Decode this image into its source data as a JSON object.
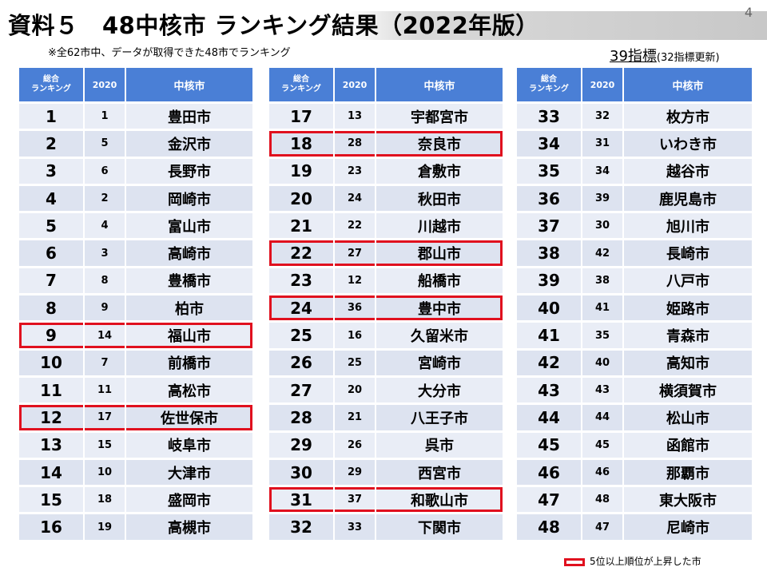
{
  "title": "資料５　48中核市 ランキング結果（2022年版）",
  "page_number": "4",
  "note": "※全62市中、データが取得できた48市でランキング",
  "indicators": {
    "main": "39指標",
    "sub": "(32指標更新)"
  },
  "headers": {
    "rank_line1": "総合",
    "rank_line2": "ランキング",
    "year": "2020",
    "city": "中核市"
  },
  "tables": [
    {
      "rows": [
        {
          "rank": "1",
          "prev": "1",
          "city": "豊田市",
          "up": false
        },
        {
          "rank": "2",
          "prev": "5",
          "city": "金沢市",
          "up": false
        },
        {
          "rank": "3",
          "prev": "6",
          "city": "長野市",
          "up": false
        },
        {
          "rank": "4",
          "prev": "2",
          "city": "岡崎市",
          "up": false
        },
        {
          "rank": "5",
          "prev": "4",
          "city": "富山市",
          "up": false
        },
        {
          "rank": "6",
          "prev": "3",
          "city": "高崎市",
          "up": false
        },
        {
          "rank": "7",
          "prev": "8",
          "city": "豊橋市",
          "up": false
        },
        {
          "rank": "8",
          "prev": "9",
          "city": "柏市",
          "up": false
        },
        {
          "rank": "9",
          "prev": "14",
          "city": "福山市",
          "up": true
        },
        {
          "rank": "10",
          "prev": "7",
          "city": "前橋市",
          "up": false
        },
        {
          "rank": "11",
          "prev": "11",
          "city": "高松市",
          "up": false
        },
        {
          "rank": "12",
          "prev": "17",
          "city": "佐世保市",
          "up": true
        },
        {
          "rank": "13",
          "prev": "15",
          "city": "岐阜市",
          "up": false
        },
        {
          "rank": "14",
          "prev": "10",
          "city": "大津市",
          "up": false
        },
        {
          "rank": "15",
          "prev": "18",
          "city": "盛岡市",
          "up": false
        },
        {
          "rank": "16",
          "prev": "19",
          "city": "高槻市",
          "up": false
        }
      ]
    },
    {
      "rows": [
        {
          "rank": "17",
          "prev": "13",
          "city": "宇都宮市",
          "up": false
        },
        {
          "rank": "18",
          "prev": "28",
          "city": "奈良市",
          "up": true
        },
        {
          "rank": "19",
          "prev": "23",
          "city": "倉敷市",
          "up": false
        },
        {
          "rank": "20",
          "prev": "24",
          "city": "秋田市",
          "up": false
        },
        {
          "rank": "21",
          "prev": "22",
          "city": "川越市",
          "up": false
        },
        {
          "rank": "22",
          "prev": "27",
          "city": "郡山市",
          "up": true
        },
        {
          "rank": "23",
          "prev": "12",
          "city": "船橋市",
          "up": false
        },
        {
          "rank": "24",
          "prev": "36",
          "city": "豊中市",
          "up": true
        },
        {
          "rank": "25",
          "prev": "16",
          "city": "久留米市",
          "up": false
        },
        {
          "rank": "26",
          "prev": "25",
          "city": "宮崎市",
          "up": false
        },
        {
          "rank": "27",
          "prev": "20",
          "city": "大分市",
          "up": false
        },
        {
          "rank": "28",
          "prev": "21",
          "city": "八王子市",
          "up": false
        },
        {
          "rank": "29",
          "prev": "26",
          "city": "呉市",
          "up": false
        },
        {
          "rank": "30",
          "prev": "29",
          "city": "西宮市",
          "up": false
        },
        {
          "rank": "31",
          "prev": "37",
          "city": "和歌山市",
          "up": true
        },
        {
          "rank": "32",
          "prev": "33",
          "city": "下関市",
          "up": false
        }
      ]
    },
    {
      "rows": [
        {
          "rank": "33",
          "prev": "32",
          "city": "枚方市",
          "up": false
        },
        {
          "rank": "34",
          "prev": "31",
          "city": "いわき市",
          "up": false
        },
        {
          "rank": "35",
          "prev": "34",
          "city": "越谷市",
          "up": false
        },
        {
          "rank": "36",
          "prev": "39",
          "city": "鹿児島市",
          "up": false
        },
        {
          "rank": "37",
          "prev": "30",
          "city": "旭川市",
          "up": false
        },
        {
          "rank": "38",
          "prev": "42",
          "city": "長崎市",
          "up": false
        },
        {
          "rank": "39",
          "prev": "38",
          "city": "八戸市",
          "up": false
        },
        {
          "rank": "40",
          "prev": "41",
          "city": "姫路市",
          "up": false
        },
        {
          "rank": "41",
          "prev": "35",
          "city": "青森市",
          "up": false
        },
        {
          "rank": "42",
          "prev": "40",
          "city": "高知市",
          "up": false
        },
        {
          "rank": "43",
          "prev": "43",
          "city": "横須賀市",
          "up": false
        },
        {
          "rank": "44",
          "prev": "44",
          "city": "松山市",
          "up": false
        },
        {
          "rank": "45",
          "prev": "45",
          "city": "函館市",
          "up": false
        },
        {
          "rank": "46",
          "prev": "46",
          "city": "那覇市",
          "up": false
        },
        {
          "rank": "47",
          "prev": "48",
          "city": "東大阪市",
          "up": false
        },
        {
          "rank": "48",
          "prev": "47",
          "city": "尼崎市",
          "up": false
        }
      ]
    }
  ],
  "legend": "5位以上順位が上昇した市",
  "colors": {
    "header": "#4a7fd6",
    "highlight": "#e0101e",
    "row": "#dde3f0"
  }
}
